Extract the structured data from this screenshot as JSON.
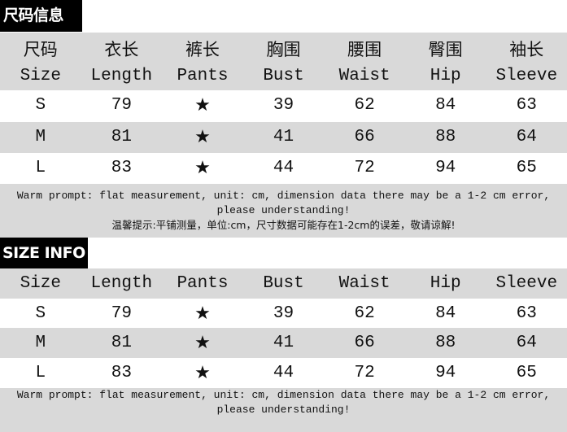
{
  "table1": {
    "title": "尺码信息",
    "headers_zh": [
      "尺码",
      "衣长",
      "裤长",
      "胸围",
      "腰围",
      "臀围",
      "袖长"
    ],
    "headers_en": [
      "Size",
      "Length",
      "Pants",
      "Bust",
      "Waist",
      "Hip",
      "Sleeve"
    ],
    "rows": [
      [
        "S",
        "79",
        "★",
        "39",
        "62",
        "84",
        "63"
      ],
      [
        "M",
        "81",
        "★",
        "41",
        "66",
        "88",
        "64"
      ],
      [
        "L",
        "83",
        "★",
        "44",
        "72",
        "94",
        "65"
      ]
    ],
    "note_en": "Warm prompt: flat measurement, unit: cm, dimension data there may be a 1-2 cm error, please understanding!",
    "note_zh": "温馨提示:平铺测量，单位:cm，尺寸数据可能存在1-2cm的误差，敬请谅解!"
  },
  "table2": {
    "title": "SIZE INFO",
    "headers_en": [
      "Size",
      "Length",
      "Pants",
      "Bust",
      "Waist",
      "Hip",
      "Sleeve"
    ],
    "rows": [
      [
        "S",
        "79",
        "★",
        "39",
        "62",
        "84",
        "63"
      ],
      [
        "M",
        "81",
        "★",
        "41",
        "66",
        "88",
        "64"
      ],
      [
        "L",
        "83",
        "★",
        "44",
        "72",
        "94",
        "65"
      ]
    ],
    "note_en": "Warm prompt: flat measurement, unit: cm, dimension data there may be a 1-2 cm error, please understanding!"
  },
  "colors": {
    "header_bg": "#d9d9d9",
    "title_bg": "#000000"
  }
}
